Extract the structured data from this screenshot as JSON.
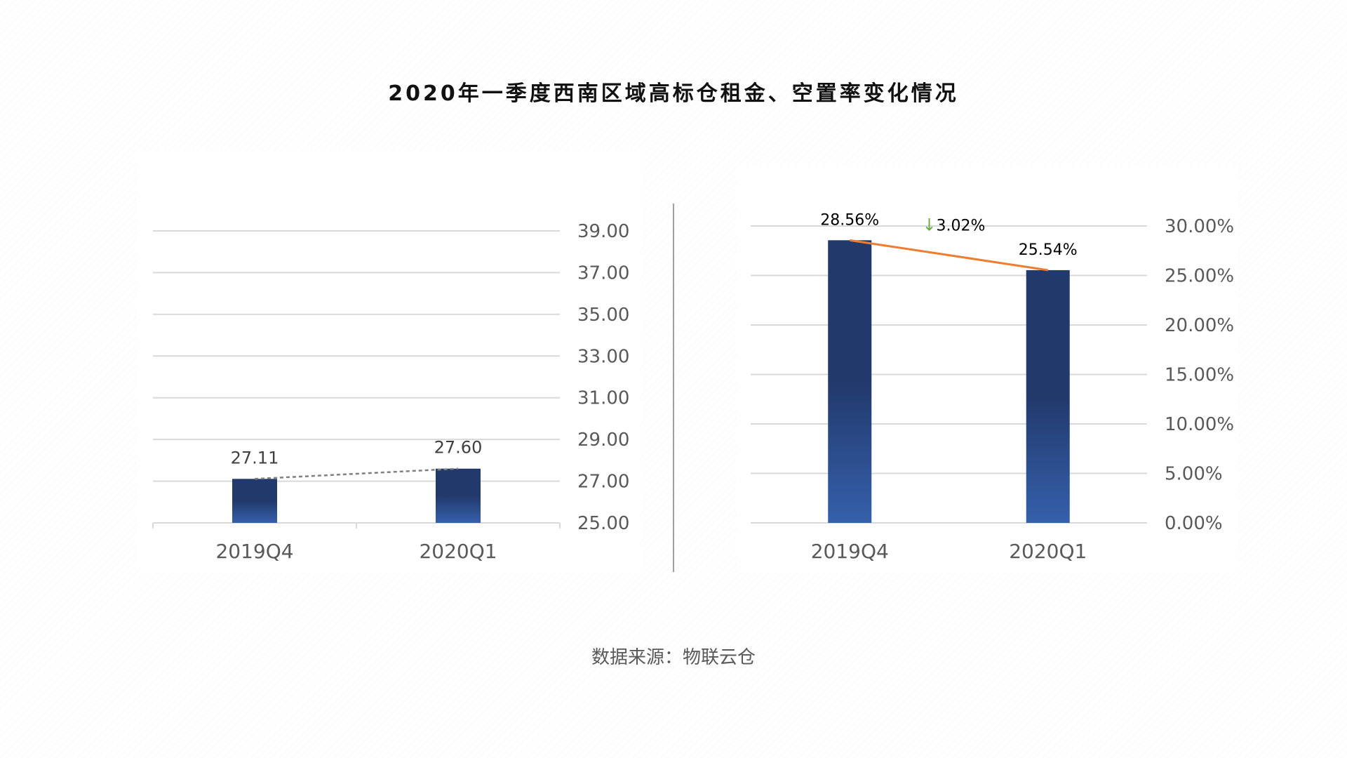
{
  "title": "2020年一季度西南区域高标仓租金、空置率变化情况",
  "source": "数据来源：物联云仓",
  "colors": {
    "bar_top": "#22396b",
    "bar_bottom": "#3560ab",
    "rent_trend": "#808080",
    "vacancy_trend": "#ed7d31",
    "down_arrow": "#70ad47",
    "grid": "#d9d9d9",
    "axis_text": "#595959",
    "label_text": "#000000"
  },
  "chart_data": [
    {
      "type": "bar",
      "categories": [
        "2019Q4",
        "2020Q1"
      ],
      "values": [
        27.11,
        27.6
      ],
      "data_labels": [
        "27.11",
        "27.60"
      ],
      "ylim": [
        25,
        39
      ],
      "yticks": [
        "25.00",
        "27.00",
        "29.00",
        "31.00",
        "33.00",
        "35.00",
        "37.00",
        "39.00"
      ],
      "y_axis_position": "right",
      "grid": true,
      "trend_line": "dashed"
    },
    {
      "type": "bar",
      "categories": [
        "2019Q4",
        "2020Q1"
      ],
      "values": [
        28.56,
        25.54
      ],
      "data_labels": [
        "28.56%",
        "25.54%"
      ],
      "ylim": [
        0,
        30
      ],
      "yticks": [
        "0.00%",
        "5.00%",
        "10.00%",
        "15.00%",
        "20.00%",
        "25.00%",
        "30.00%"
      ],
      "y_axis_position": "right",
      "grid": true,
      "trend_line": "solid",
      "change_arrow": "↓",
      "change_label": "3.02%"
    }
  ]
}
